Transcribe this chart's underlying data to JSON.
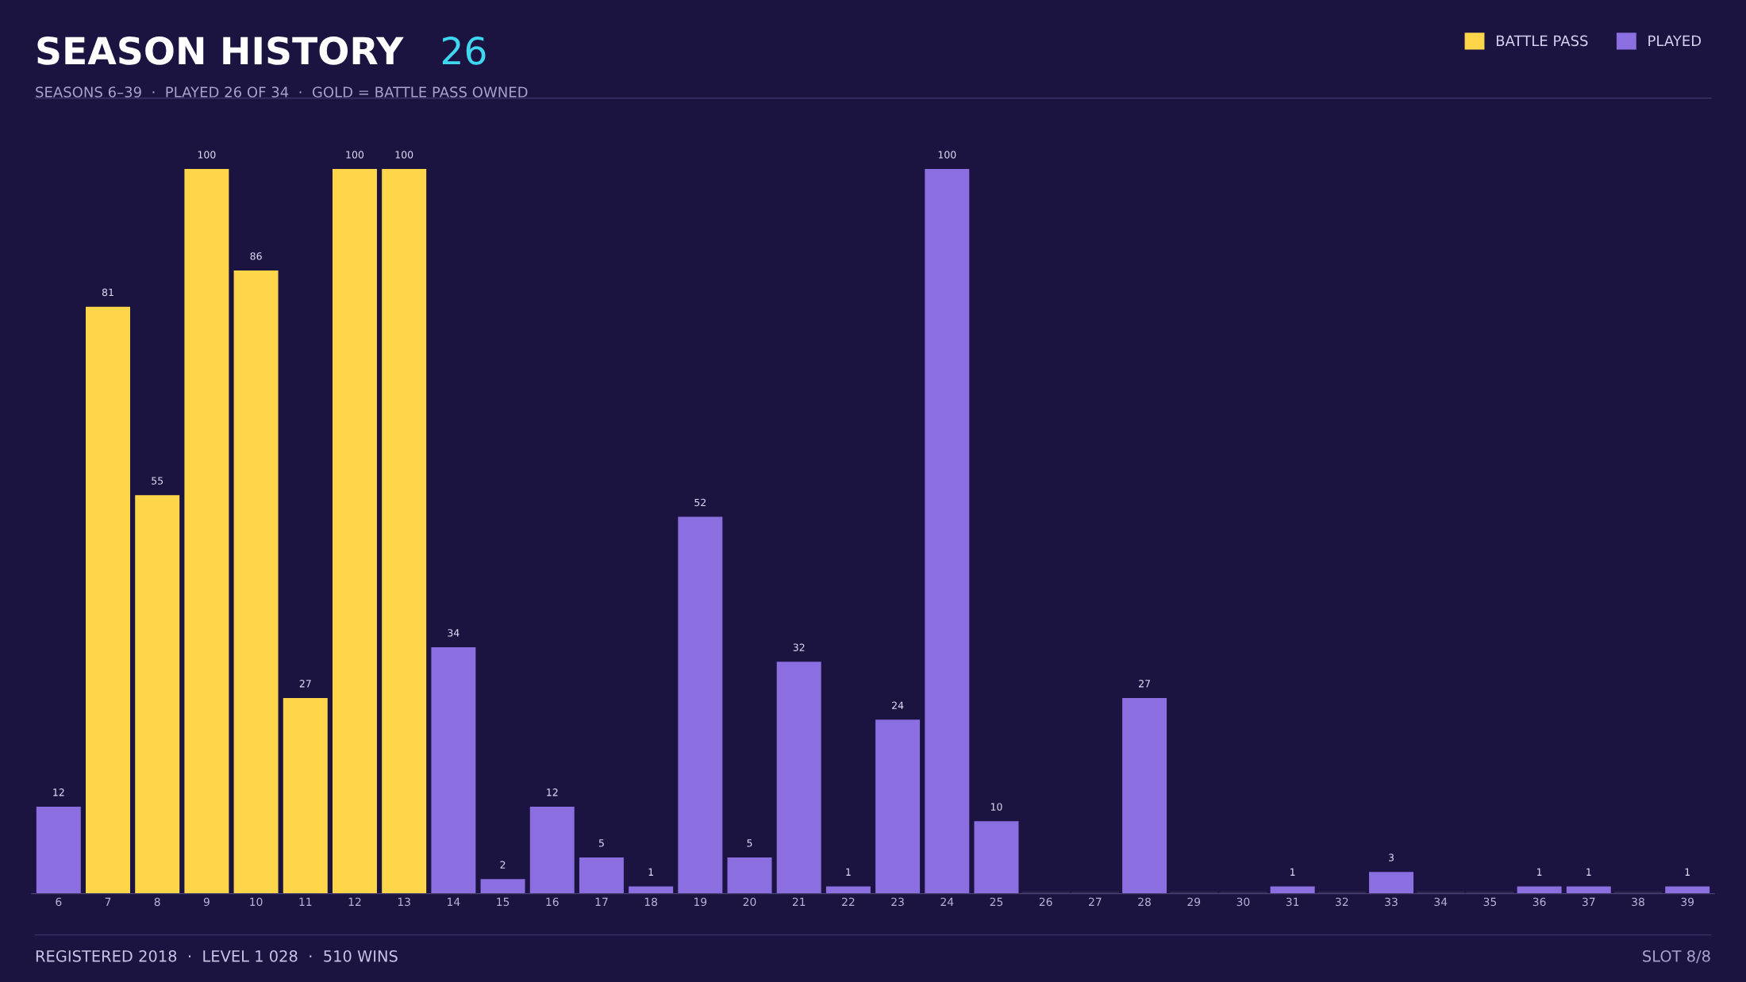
{
  "chart_data": {
    "type": "bar",
    "title": "SEASON HISTORY",
    "subtitle": "SEASONS 6–39  ·  PLAYED 26 OF 34  ·  GOLD = BATTLE PASS OWNED",
    "annotations": [
      "26",
      "REGISTERED 2018  ·  LEVEL 1 028  ·  510 WINS",
      "SLOT 8/8"
    ],
    "categories": [
      "6",
      "7",
      "8",
      "9",
      "10",
      "11",
      "12",
      "13",
      "14",
      "15",
      "16",
      "17",
      "18",
      "19",
      "20",
      "21",
      "22",
      "23",
      "24",
      "25",
      "26",
      "27",
      "28",
      "29",
      "30",
      "31",
      "32",
      "33",
      "34",
      "35",
      "36",
      "37",
      "38",
      "39"
    ],
    "stacked": true,
    "series": [
      {
        "name": "BATTLE PASS",
        "color": "#ffd54a",
        "values": [
          null,
          81,
          55,
          100,
          86,
          27,
          100,
          100,
          null,
          null,
          null,
          null,
          null,
          null,
          null,
          null,
          null,
          null,
          null,
          null,
          null,
          null,
          null,
          null,
          null,
          null,
          null,
          null,
          null,
          null,
          null,
          null,
          null,
          null
        ],
        "value_labels": [
          null,
          "81",
          "55",
          "100",
          "86",
          "27",
          "100",
          "100",
          null,
          null,
          null,
          null,
          null,
          null,
          null,
          null,
          null,
          null,
          null,
          null,
          null,
          null,
          null,
          null,
          null,
          null,
          null,
          null,
          null,
          null,
          null,
          null,
          null,
          null
        ]
      },
      {
        "name": "PLAYED",
        "color": "#8b6fe0",
        "values": [
          12,
          null,
          null,
          null,
          null,
          null,
          null,
          null,
          34,
          2,
          12,
          5,
          1,
          52,
          5,
          32,
          1,
          24,
          100,
          10,
          null,
          null,
          27,
          null,
          null,
          1,
          null,
          3,
          null,
          null,
          1,
          1,
          null,
          1
        ],
        "value_labels": [
          "12",
          null,
          null,
          null,
          null,
          null,
          null,
          null,
          "34",
          "2",
          "12",
          "5",
          "1",
          "52",
          "5",
          "32",
          "1",
          "24",
          "100",
          "10",
          null,
          null,
          "27",
          null,
          null,
          "1",
          null,
          "3",
          null,
          null,
          "1",
          "1",
          null,
          "1"
        ]
      },
      {
        "color": "#2e2850",
        "values": [
          null,
          null,
          null,
          null,
          null,
          null,
          null,
          null,
          null,
          null,
          null,
          null,
          null,
          null,
          null,
          null,
          null,
          null,
          null,
          null,
          0,
          0,
          null,
          0,
          0,
          null,
          0,
          null,
          0,
          0,
          null,
          null,
          0,
          null
        ]
      }
    ],
    "legend": "top right",
    "grid": false
  }
}
